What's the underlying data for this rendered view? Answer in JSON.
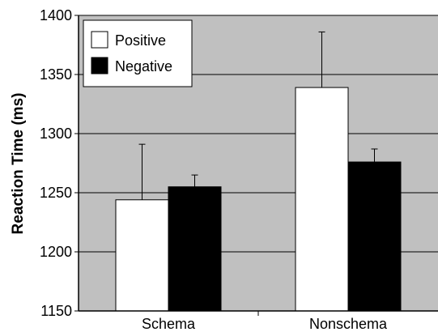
{
  "chart_data": {
    "type": "bar",
    "categories": [
      "Schema",
      "Nonschema"
    ],
    "series": [
      {
        "name": "Positive",
        "values": [
          1244,
          1339
        ],
        "errors": [
          47,
          47
        ]
      },
      {
        "name": "Negative",
        "values": [
          1255,
          1276
        ],
        "errors": [
          10,
          11
        ]
      }
    ],
    "ylabel": "Reaction Time (ms)",
    "xlabel": "",
    "ylim": [
      1150,
      1400
    ],
    "yticks": [
      "1150",
      "1200",
      "1250",
      "1300",
      "1350",
      "1400"
    ],
    "grid": true,
    "legend_position": "top-left",
    "colors": {
      "plot_background": "#c0c0c0",
      "Positive": "#ffffff",
      "Negative": "#000000",
      "gridline": "#000000"
    }
  }
}
